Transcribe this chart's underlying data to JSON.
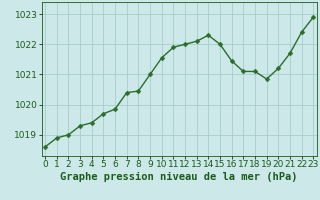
{
  "x": [
    0,
    1,
    2,
    3,
    4,
    5,
    6,
    7,
    8,
    9,
    10,
    11,
    12,
    13,
    14,
    15,
    16,
    17,
    18,
    19,
    20,
    21,
    22,
    23
  ],
  "y": [
    1018.6,
    1018.9,
    1019.0,
    1019.3,
    1019.4,
    1019.7,
    1019.85,
    1020.4,
    1020.45,
    1021.0,
    1021.55,
    1021.9,
    1022.0,
    1022.1,
    1022.3,
    1022.0,
    1021.45,
    1021.1,
    1021.1,
    1020.85,
    1021.2,
    1021.7,
    1022.4,
    1022.9
  ],
  "line_color": "#2a6e2a",
  "marker_color": "#2a6e2a",
  "bg_color": "#cce8e8",
  "grid_color": "#a8cccc",
  "title": "Graphe pression niveau de la mer (hPa)",
  "title_color": "#1a5c1a",
  "title_fontsize": 7.5,
  "ylabel_ticks": [
    1019,
    1020,
    1021,
    1022,
    1023
  ],
  "ylim": [
    1018.3,
    1023.4
  ],
  "xlim": [
    -0.3,
    23.3
  ],
  "tick_fontsize": 6.5,
  "axis_label_color": "#1a5c1a",
  "marker_size": 2.5,
  "line_width": 1.0
}
